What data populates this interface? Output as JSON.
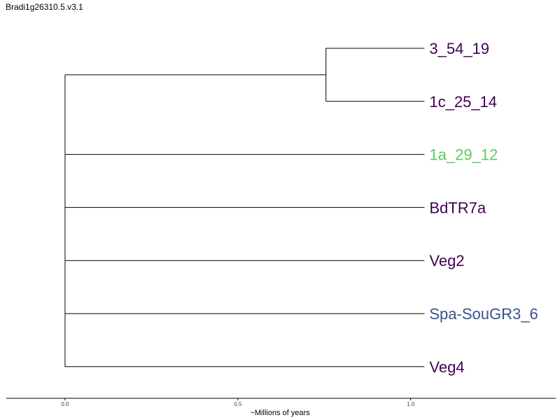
{
  "title": "Bradi1g26310.5.v3.1",
  "tree": {
    "axis_label": "~Millions of years",
    "x_range": [
      -0.17,
      1.42
    ],
    "tick_values": [
      0.0,
      0.5,
      1.0
    ],
    "tick_labels": [
      "0.0",
      "0.5",
      "1.0"
    ],
    "root": {
      "x": 0.0
    },
    "clades": [
      {
        "name": "clade-a",
        "node_x": 0.755,
        "tips": [
          {
            "label": "3_54_19",
            "x": 1.04,
            "color": "#440154"
          },
          {
            "label": "1c_25_14",
            "x": 1.04,
            "color": "#440154"
          }
        ]
      },
      {
        "tips": [
          {
            "label": "1a_29_12",
            "x": 1.04,
            "color": "#5ec962"
          }
        ]
      },
      {
        "tips": [
          {
            "label": "BdTR7a",
            "x": 1.04,
            "color": "#440154"
          }
        ]
      },
      {
        "tips": [
          {
            "label": "Veg2",
            "x": 1.04,
            "color": "#440154"
          }
        ]
      },
      {
        "tips": [
          {
            "label": "Spa-SouGR3_6",
            "x": 1.04,
            "color": "#3b528b"
          }
        ]
      },
      {
        "tips": [
          {
            "label": "Veg4",
            "x": 1.04,
            "color": "#440154"
          }
        ]
      }
    ]
  }
}
